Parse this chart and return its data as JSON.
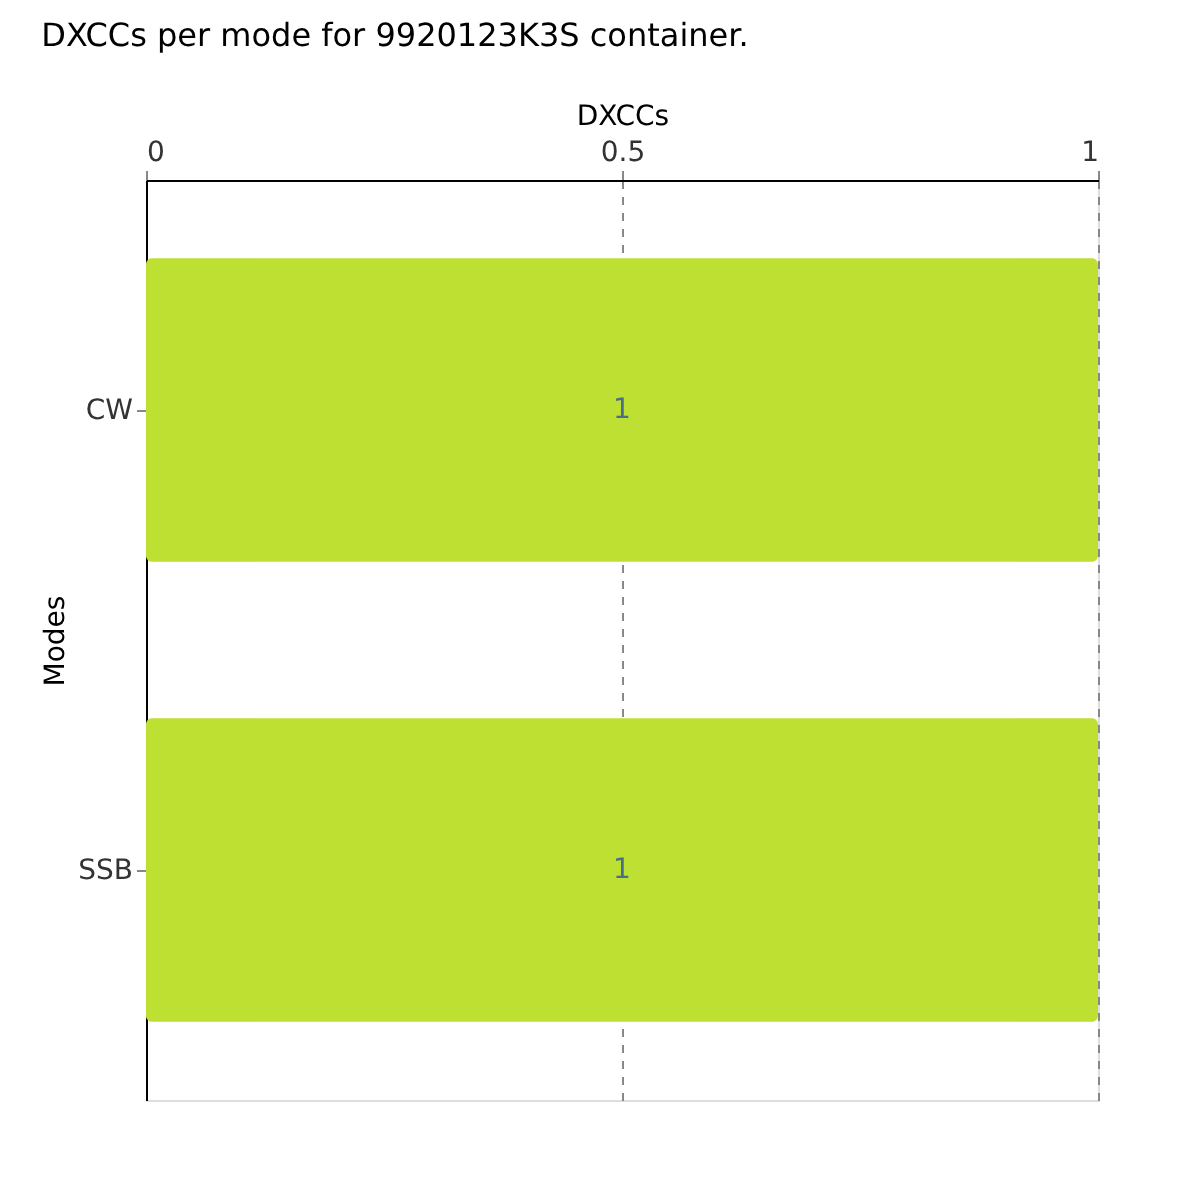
{
  "chart_data": {
    "type": "bar",
    "orientation": "horizontal",
    "title": "DXCCs per mode for 9920123K3S container.",
    "xlabel": "DXCCs",
    "ylabel": "Modes",
    "categories": [
      "CW",
      "SSB"
    ],
    "values": [
      1,
      1
    ],
    "color": "#bde032",
    "xlim": [
      0,
      1
    ],
    "xticks": [
      0,
      0.5,
      1
    ],
    "grid": "x",
    "data_labels": true
  }
}
